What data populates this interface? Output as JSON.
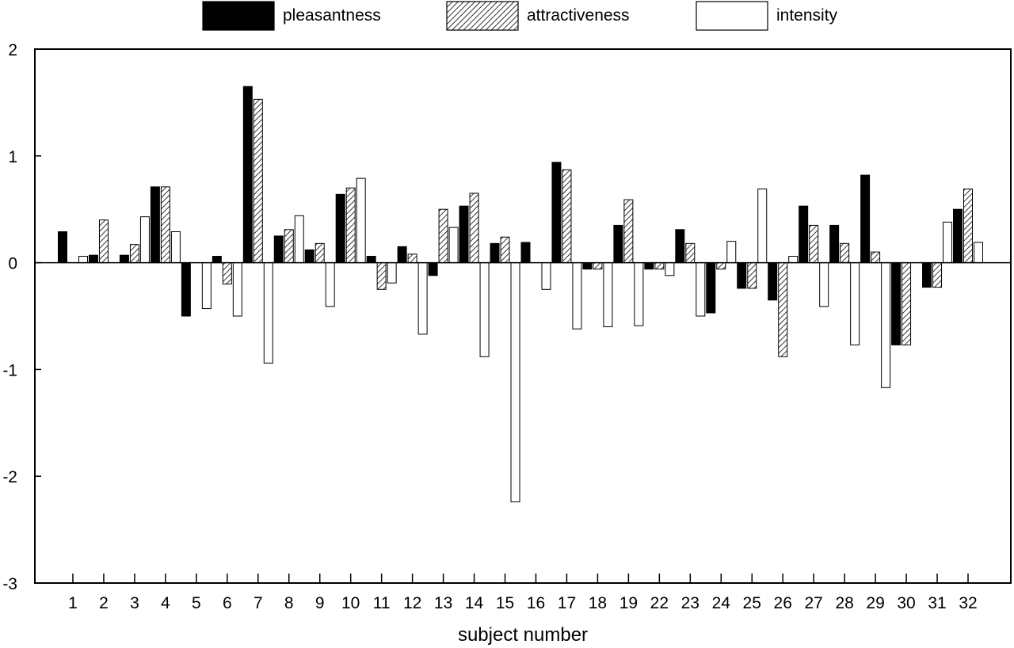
{
  "chart_data": {
    "type": "bar",
    "xlabel": "subject number",
    "ylabel": "",
    "ylim": [
      -3,
      2
    ],
    "yticks": [
      2,
      1,
      0,
      -1,
      -2,
      -3
    ],
    "yticklabels": [
      "2",
      "1",
      "0",
      "-1",
      "-2",
      "-3"
    ],
    "grid": false,
    "legend_position": "top",
    "categories": [
      "1",
      "2",
      "3",
      "4",
      "5",
      "6",
      "7",
      "8",
      "9",
      "10",
      "11",
      "12",
      "13",
      "14",
      "15",
      "16",
      "17",
      "18",
      "19",
      "22",
      "23",
      "24",
      "25",
      "26",
      "27",
      "28",
      "29",
      "30",
      "31",
      "32"
    ],
    "series": [
      {
        "name": "pleasantness",
        "fill": "solid",
        "color": "#000000",
        "values": [
          0.29,
          0.07,
          0.07,
          0.71,
          -0.5,
          0.06,
          1.65,
          0.25,
          0.12,
          0.64,
          0.06,
          0.15,
          -0.12,
          0.53,
          0.18,
          0.19,
          0.94,
          -0.06,
          0.35,
          -0.06,
          0.31,
          -0.47,
          -0.24,
          -0.35,
          0.53,
          0.35,
          0.82,
          -0.77,
          -0.23,
          0.5
        ]
      },
      {
        "name": "attractiveness",
        "fill": "hatched",
        "color": "#000000",
        "values": [
          0.0,
          0.4,
          0.17,
          0.71,
          0.0,
          -0.2,
          1.53,
          0.31,
          0.18,
          0.7,
          -0.25,
          0.08,
          0.5,
          0.65,
          0.24,
          0.0,
          0.87,
          -0.06,
          0.59,
          -0.06,
          0.18,
          -0.06,
          -0.24,
          -0.88,
          0.35,
          0.18,
          0.1,
          -0.77,
          -0.23,
          0.69
        ]
      },
      {
        "name": "intensity",
        "fill": "open",
        "color": "#ffffff",
        "values": [
          0.06,
          0.0,
          0.43,
          0.29,
          -0.43,
          -0.5,
          -0.94,
          0.44,
          -0.41,
          0.79,
          -0.19,
          -0.67,
          0.33,
          -0.88,
          -2.24,
          -0.25,
          -0.62,
          -0.6,
          -0.59,
          -0.12,
          -0.5,
          0.2,
          0.69,
          0.06,
          -0.41,
          -0.77,
          -1.17,
          0.0,
          0.38,
          0.19
        ]
      }
    ]
  }
}
